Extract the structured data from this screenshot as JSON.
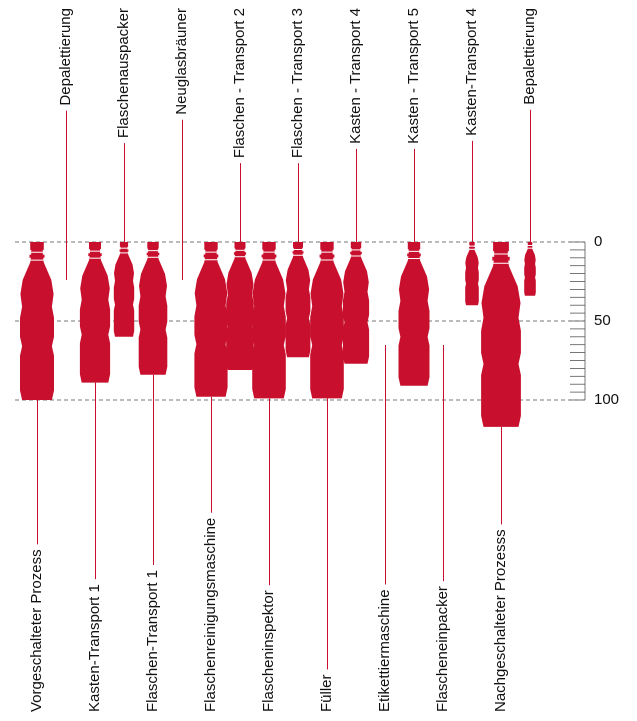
{
  "chart_data": {
    "type": "bottle",
    "categories": [
      "Vorgeschalteter Prozess",
      "Depalettierung",
      "Kasten-Transport 1",
      "Flaschenauspacker",
      "Flaschen-Transport 1",
      "Neuglasbräuner",
      "Flaschenreinigungsmaschine",
      "Flaschen - Transport 2",
      "Flascheninspektor",
      "Flaschen - Transport 3",
      "Füller",
      "Kasten - Transport 4",
      "Etikettiermaschine",
      "Kasten - Transport 5",
      "Flascheneinpacker",
      "Kasten-Transport 4",
      "Nachgeschalteter Prozesss",
      "Bepalettierung"
    ],
    "values": [
      100,
      null,
      89,
      60,
      84,
      null,
      98,
      81,
      99,
      73,
      99,
      77,
      null,
      91,
      null,
      40,
      117,
      34
    ],
    "label_position": [
      "bottom",
      "top",
      "bottom",
      "top",
      "bottom",
      "top",
      "bottom",
      "top",
      "bottom",
      "top",
      "bottom",
      "top",
      "bottom",
      "top",
      "bottom",
      "top",
      "bottom",
      "top"
    ],
    "color": "#c8102e",
    "ylim": [
      0,
      100
    ],
    "yticks": [
      0,
      50,
      100
    ]
  }
}
